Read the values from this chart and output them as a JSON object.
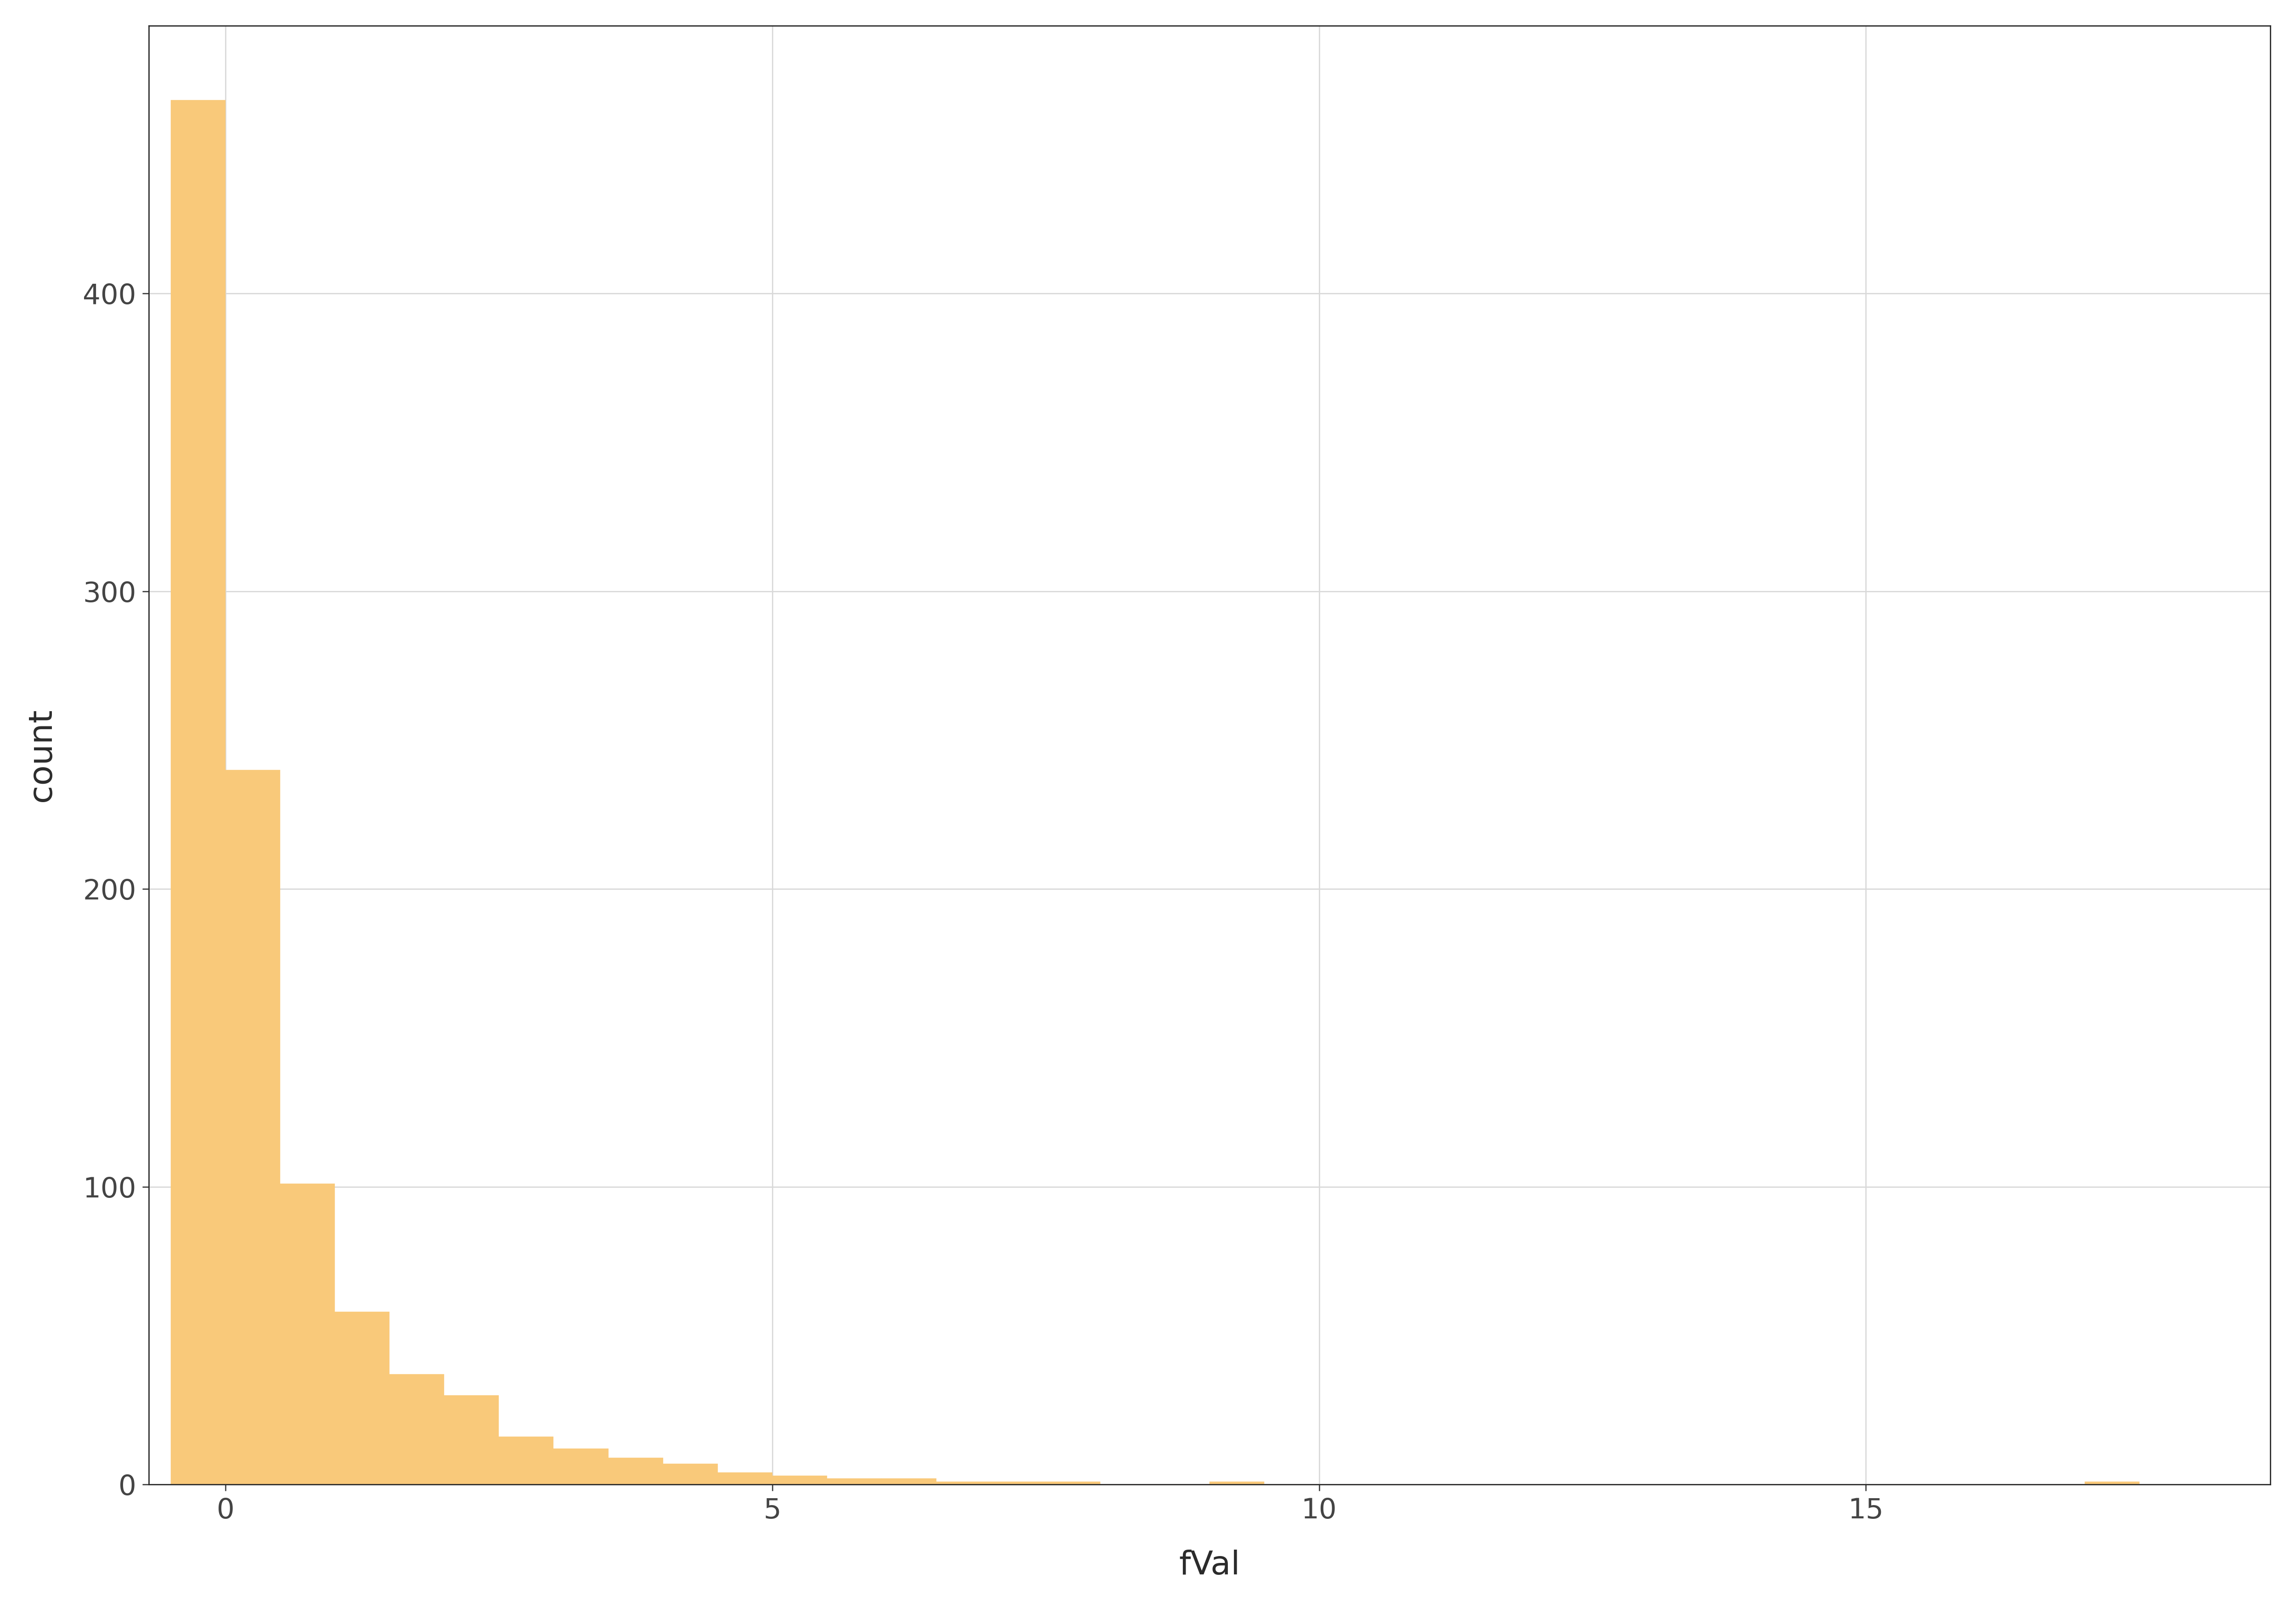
{
  "title": "",
  "xlabel": "fVal",
  "ylabel": "count",
  "bar_color": "#F9C97A",
  "bar_edgecolor": "#F9C97A",
  "background_color": "#FFFFFF",
  "panel_background": "#FFFFFF",
  "grid_color": "#D9D9D9",
  "axis_color": "#2B2B2B",
  "tick_label_color": "#444444",
  "xlabel_fontsize": 52,
  "ylabel_fontsize": 52,
  "tick_fontsize": 44,
  "bin_counts": [
    465,
    240,
    101,
    58,
    37,
    30,
    16,
    12,
    9,
    7,
    4,
    3,
    2,
    2,
    1,
    1,
    1,
    0,
    0,
    1,
    0,
    0,
    0,
    0,
    0,
    0,
    0,
    0,
    0,
    0,
    0,
    0,
    0,
    0,
    0,
    1
  ],
  "bin_width": 0.5,
  "bin_start": -0.25,
  "xlim": [
    -0.7,
    18.7
  ],
  "ylim": [
    0,
    490
  ],
  "yticks": [
    0,
    100,
    200,
    300,
    400
  ],
  "xticks": [
    0,
    5,
    10,
    15
  ]
}
